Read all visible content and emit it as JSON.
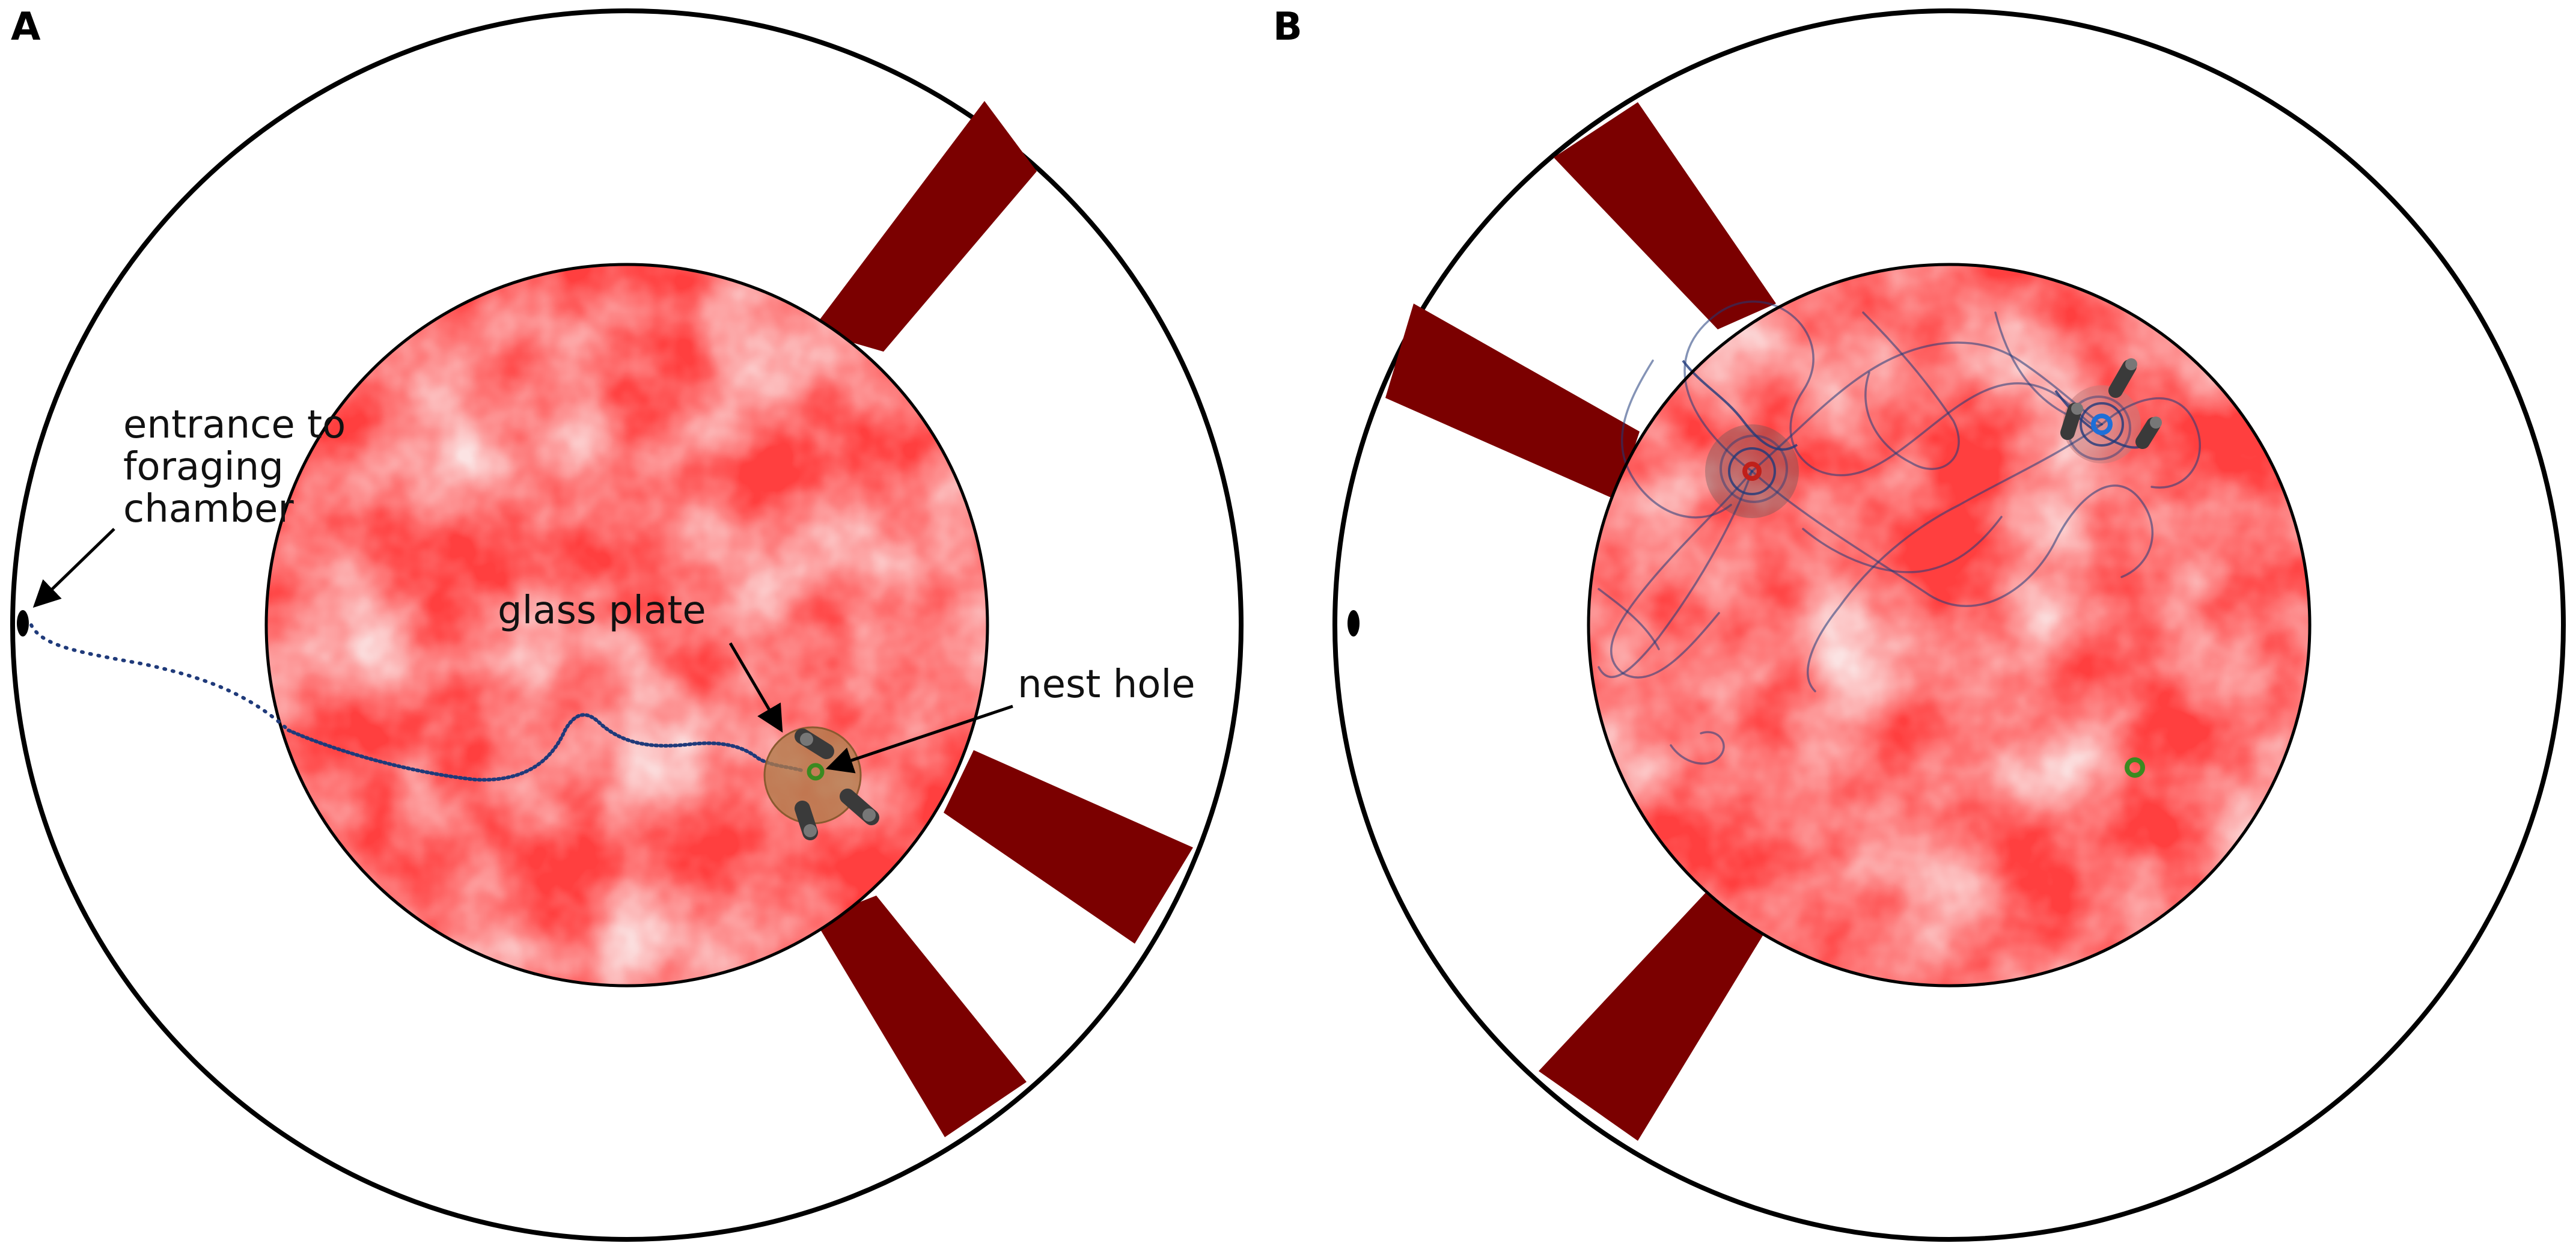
{
  "panels": [
    {
      "letter": "A",
      "annotations": {
        "entrance": [
          "entrance to",
          "foraging",
          "chamber"
        ],
        "glass_plate": "glass plate",
        "nest_hole": "nest hole"
      }
    },
    {
      "letter": "B"
    }
  ],
  "colors": {
    "arena_outline": "#000000",
    "foraging_floor": "#f07f7f",
    "barrier_wedge": "#7b0000",
    "trajectory": "#1f3a7a",
    "glass_plate": "#b07b4a",
    "nest_hole_marker": "#3a8a20",
    "feeder_red": "#c0201a",
    "feeder_blue": "#1e6fd8",
    "post": "#3a3a3a"
  },
  "icons": [
    "entrance-hole-icon",
    "nest-hole-icon",
    "post-icon",
    "arrow-icon"
  ]
}
